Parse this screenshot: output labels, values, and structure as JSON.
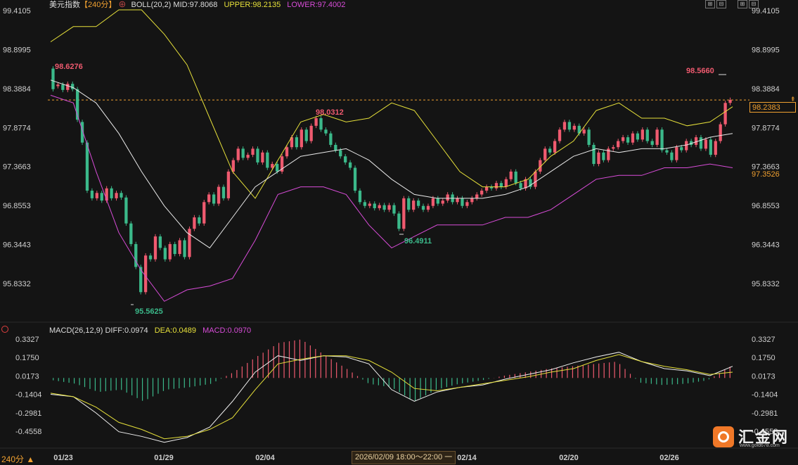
{
  "header": {
    "instrument": "美元指数",
    "period_label": "【240分】",
    "settings_glyph": "⊕",
    "boll_label": "BOLL(20,2)",
    "mid": "MID:97.8068",
    "upper": "UPPER:98.2135",
    "lower": "LOWER:97.4002"
  },
  "macd_header": {
    "label": "MACD(26,12,9)",
    "diff": "DIFF:0.0974",
    "dea": "DEA:0.0489",
    "macd": "MACD:0.0970"
  },
  "toolbar": {
    "period_button": "240分 ▲"
  },
  "price_tags": {
    "current": "98.2383",
    "lower": "97.3526"
  },
  "cursor_time": "2026/02/09 18:00～22:00 一",
  "logo": {
    "brand": "汇金网",
    "url": "www.gold678.com"
  },
  "colors": {
    "up": "#ef5a6f",
    "down": "#3bb98a",
    "upper": "#e6e03a",
    "mid": "#e8e8e8",
    "lower": "#d84cd8",
    "diff": "#f0f0f0",
    "dea": "#e6e03a",
    "last_price": "#f0a030"
  },
  "chart_data": [
    {
      "type": "candlestick",
      "y_ticks": [
        "99.4105",
        "98.8995",
        "98.3884",
        "97.8774",
        "97.3663",
        "96.8553",
        "96.3443",
        "95.8332"
      ],
      "ylim": [
        95.75,
        99.42
      ],
      "x_ticks": [
        "01/23",
        "01/29",
        "02/04",
        "02/14",
        "02/20",
        "02/26"
      ],
      "annotations": [
        "98.6276",
        "95.5625",
        "98.0312",
        "96.4911",
        "98.5660"
      ],
      "last_price": 98.2383,
      "series": [
        {
          "name": "UPPER",
          "values": [
            99.0,
            99.2,
            99.2,
            99.42,
            99.42,
            99.1,
            98.7,
            98.0,
            97.3,
            96.95,
            97.45,
            97.95,
            98.05,
            97.95,
            98.0,
            98.2,
            98.1,
            97.7,
            97.3,
            97.1,
            97.1,
            97.2,
            97.5,
            97.7,
            98.1,
            98.2,
            98.0,
            98.0,
            97.9,
            97.95,
            98.15
          ]
        },
        {
          "name": "MID",
          "values": [
            98.5,
            98.4,
            98.2,
            97.8,
            97.3,
            96.85,
            96.5,
            96.3,
            96.7,
            97.1,
            97.3,
            97.5,
            97.55,
            97.6,
            97.45,
            97.2,
            97.0,
            96.95,
            96.95,
            96.95,
            97.0,
            97.1,
            97.3,
            97.5,
            97.6,
            97.55,
            97.6,
            97.6,
            97.65,
            97.75,
            97.8
          ]
        },
        {
          "name": "LOWER",
          "values": [
            98.3,
            98.2,
            97.3,
            96.5,
            96.0,
            95.6,
            95.75,
            95.8,
            95.9,
            96.4,
            97.0,
            97.1,
            97.1,
            97.0,
            96.6,
            96.3,
            96.45,
            96.6,
            96.6,
            96.6,
            96.7,
            96.7,
            96.8,
            97.0,
            97.2,
            97.25,
            97.25,
            97.35,
            97.35,
            97.4,
            97.35
          ]
        }
      ],
      "candles": [
        [
          98.65,
          98.38
        ],
        [
          98.42,
          98.44
        ],
        [
          98.44,
          98.37
        ],
        [
          98.37,
          98.45
        ],
        [
          98.45,
          98.38
        ],
        [
          98.38,
          97.98
        ],
        [
          97.95,
          97.68
        ],
        [
          97.68,
          97.05
        ],
        [
          97.05,
          96.95
        ],
        [
          96.95,
          97.02
        ],
        [
          97.02,
          96.92
        ],
        [
          96.92,
          97.08
        ],
        [
          97.08,
          96.95
        ],
        [
          96.95,
          97.02
        ],
        [
          97.02,
          96.96
        ],
        [
          96.96,
          96.62
        ],
        [
          96.62,
          96.35
        ],
        [
          96.35,
          96.05
        ],
        [
          96.05,
          95.72
        ],
        [
          95.72,
          96.2
        ],
        [
          96.2,
          96.15
        ],
        [
          96.15,
          96.45
        ],
        [
          96.45,
          96.3
        ],
        [
          96.3,
          96.15
        ],
        [
          96.15,
          96.35
        ],
        [
          96.35,
          96.22
        ],
        [
          96.22,
          96.4
        ],
        [
          96.4,
          96.18
        ],
        [
          96.18,
          96.55
        ],
        [
          96.55,
          96.7
        ],
        [
          96.7,
          96.62
        ],
        [
          96.62,
          96.9
        ],
        [
          96.9,
          97.0
        ],
        [
          97.0,
          96.88
        ],
        [
          96.88,
          97.1
        ],
        [
          97.1,
          96.95
        ],
        [
          96.95,
          97.3
        ],
        [
          97.3,
          97.45
        ],
        [
          97.45,
          97.6
        ],
        [
          97.6,
          97.48
        ],
        [
          97.48,
          97.52
        ],
        [
          97.52,
          97.6
        ],
        [
          97.6,
          97.42
        ],
        [
          97.42,
          97.55
        ],
        [
          97.55,
          97.35
        ],
        [
          97.35,
          97.4
        ],
        [
          97.4,
          97.3
        ],
        [
          97.3,
          97.5
        ],
        [
          97.5,
          97.62
        ],
        [
          97.62,
          97.75
        ],
        [
          97.75,
          97.62
        ],
        [
          97.62,
          97.85
        ],
        [
          97.85,
          97.7
        ],
        [
          97.7,
          97.9
        ],
        [
          97.9,
          98.0
        ],
        [
          98.0,
          97.85
        ],
        [
          97.85,
          97.8
        ],
        [
          97.8,
          97.65
        ],
        [
          97.65,
          97.58
        ],
        [
          97.58,
          97.5
        ],
        [
          97.5,
          97.42
        ],
        [
          97.42,
          97.35
        ],
        [
          97.35,
          97.05
        ],
        [
          97.05,
          96.9
        ],
        [
          96.9,
          96.85
        ],
        [
          96.85,
          96.88
        ],
        [
          96.88,
          96.82
        ],
        [
          96.82,
          96.86
        ],
        [
          96.86,
          96.8
        ],
        [
          96.8,
          96.86
        ],
        [
          96.86,
          96.75
        ],
        [
          96.75,
          96.55
        ],
        [
          96.55,
          96.95
        ],
        [
          96.95,
          96.8
        ],
        [
          96.8,
          96.92
        ],
        [
          96.92,
          96.85
        ],
        [
          96.85,
          96.8
        ],
        [
          96.8,
          96.85
        ],
        [
          96.85,
          96.95
        ],
        [
          96.95,
          96.88
        ],
        [
          96.88,
          96.92
        ],
        [
          96.92,
          97.0
        ],
        [
          97.0,
          96.9
        ],
        [
          96.9,
          96.95
        ],
        [
          96.95,
          96.85
        ],
        [
          96.85,
          96.9
        ],
        [
          96.9,
          96.95
        ],
        [
          96.95,
          97.0
        ],
        [
          97.0,
          97.05
        ],
        [
          97.05,
          97.1
        ],
        [
          97.1,
          97.08
        ],
        [
          97.08,
          97.15
        ],
        [
          97.15,
          97.1
        ],
        [
          97.1,
          97.2
        ],
        [
          97.2,
          97.3
        ],
        [
          97.3,
          97.15
        ],
        [
          97.15,
          97.08
        ],
        [
          97.08,
          97.2
        ],
        [
          97.2,
          97.1
        ],
        [
          97.1,
          97.3
        ],
        [
          97.3,
          97.45
        ],
        [
          97.45,
          97.6
        ],
        [
          97.6,
          97.55
        ],
        [
          97.55,
          97.7
        ],
        [
          97.7,
          97.85
        ],
        [
          97.85,
          97.95
        ],
        [
          97.95,
          97.85
        ],
        [
          97.85,
          97.9
        ],
        [
          97.9,
          97.8
        ],
        [
          97.8,
          97.85
        ],
        [
          97.85,
          97.65
        ],
        [
          97.65,
          97.4
        ],
        [
          97.4,
          97.55
        ],
        [
          97.55,
          97.45
        ],
        [
          97.45,
          97.6
        ],
        [
          97.6,
          97.62
        ],
        [
          97.62,
          97.7
        ],
        [
          97.7,
          97.75
        ],
        [
          97.75,
          97.68
        ],
        [
          97.68,
          97.8
        ],
        [
          97.8,
          97.72
        ],
        [
          97.72,
          97.85
        ],
        [
          97.85,
          97.7
        ],
        [
          97.7,
          97.65
        ],
        [
          97.65,
          97.85
        ],
        [
          97.85,
          97.58
        ],
        [
          97.58,
          97.55
        ],
        [
          97.55,
          97.45
        ],
        [
          97.45,
          97.62
        ],
        [
          97.62,
          97.58
        ],
        [
          97.58,
          97.7
        ],
        [
          97.7,
          97.65
        ],
        [
          97.65,
          97.75
        ],
        [
          97.75,
          97.6
        ],
        [
          97.6,
          97.72
        ],
        [
          97.72,
          97.52
        ],
        [
          97.52,
          97.7
        ],
        [
          97.7,
          97.92
        ],
        [
          97.92,
          98.2
        ],
        [
          98.2,
          98.24
        ]
      ]
    },
    {
      "type": "macd",
      "y_ticks": [
        "0.3327",
        "0.1750",
        "0.0173",
        "-0.1404",
        "-0.2981",
        "-0.4558"
      ],
      "ylim": [
        -0.56,
        0.34
      ],
      "series": [
        {
          "name": "DIFF",
          "values": [
            -0.14,
            -0.16,
            -0.3,
            -0.46,
            -0.5,
            -0.55,
            -0.51,
            -0.42,
            -0.2,
            0.05,
            0.19,
            0.15,
            0.19,
            0.18,
            0.12,
            -0.1,
            -0.2,
            -0.12,
            -0.08,
            -0.06,
            -0.01,
            0.03,
            0.07,
            0.13,
            0.18,
            0.22,
            0.14,
            0.08,
            0.06,
            0.02,
            0.1
          ]
        },
        {
          "name": "DEA",
          "values": [
            -0.13,
            -0.16,
            -0.25,
            -0.38,
            -0.44,
            -0.52,
            -0.5,
            -0.44,
            -0.34,
            -0.1,
            0.12,
            0.16,
            0.19,
            0.19,
            0.15,
            0.05,
            -0.09,
            -0.11,
            -0.08,
            -0.05,
            -0.02,
            0.01,
            0.05,
            0.08,
            0.15,
            0.2,
            0.14,
            0.1,
            0.07,
            0.03,
            0.05
          ]
        },
        {
          "name": "MACD",
          "values": [
            -0.02,
            -0.05,
            -0.12,
            -0.1,
            -0.2,
            -0.1,
            -0.08,
            -0.05,
            0.05,
            0.18,
            0.3,
            0.33,
            0.2,
            0.08,
            -0.05,
            -0.08,
            -0.2,
            -0.1,
            -0.05,
            -0.02,
            0.02,
            0.05,
            0.08,
            0.1,
            0.12,
            0.14,
            -0.04,
            -0.06,
            -0.05,
            -0.02,
            0.097
          ]
        }
      ]
    }
  ]
}
